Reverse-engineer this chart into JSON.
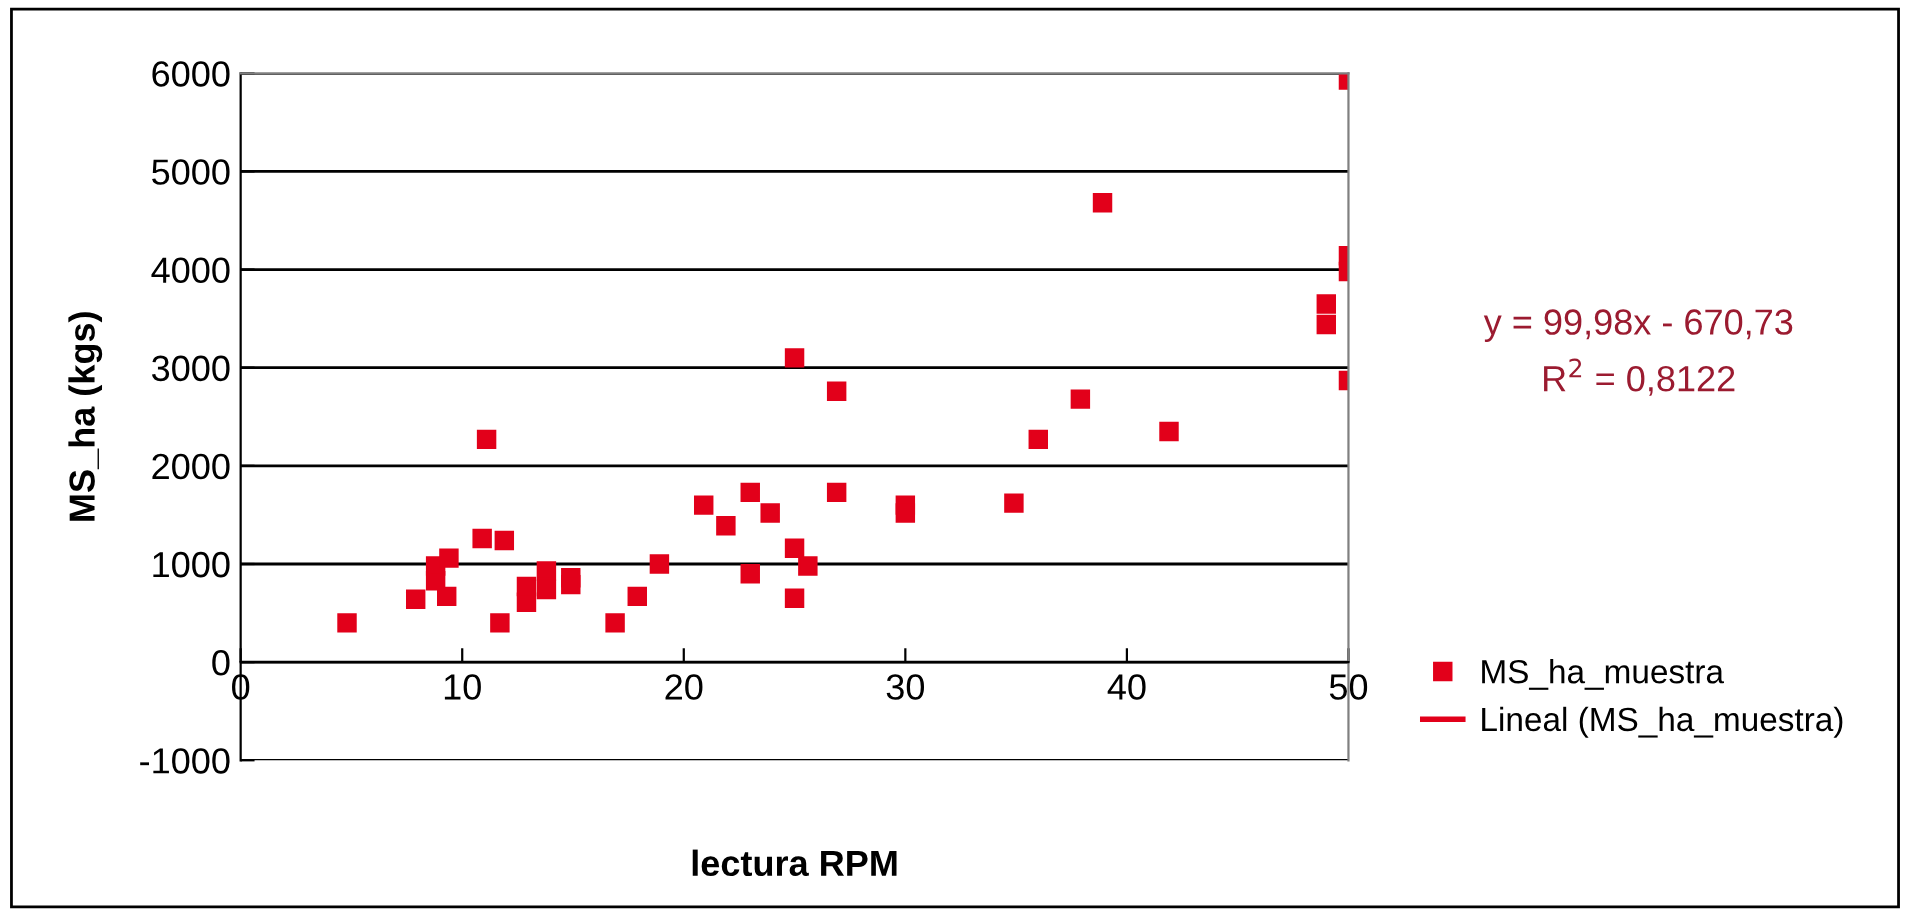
{
  "chart_data": {
    "type": "scatter",
    "xlabel": "lectura RPM",
    "ylabel": "MS_ha (kgs)",
    "xlim": [
      0,
      50
    ],
    "xticks": [
      0,
      10,
      20,
      30,
      40,
      50
    ],
    "ylim": [
      -1000,
      6000
    ],
    "yticks": [
      -1000,
      0,
      1000,
      2000,
      3000,
      4000,
      5000,
      6000
    ],
    "grid": "y",
    "legend": "right",
    "marker": "square",
    "annotations": [
      "y = 99,98x - 670,73",
      "R$^{2}$ = 0,8122"
    ],
    "series": [
      {
        "name": "MS_ha_muestra",
        "color": "#e2001a",
        "x": [
          4.8,
          7.9,
          8.8,
          8.8,
          9.4,
          9.3,
          10.9,
          11.9,
          11.7,
          12.9,
          12.9,
          13.8,
          13.8,
          14.9,
          14.9,
          16.9,
          11.1,
          17.9,
          18.9,
          20.9,
          21.9,
          23.0,
          23.0,
          23.9,
          25.0,
          25.0,
          25.0,
          25.6,
          26.9,
          26.9,
          30.0,
          30.0,
          50.0,
          38.9,
          50.0,
          50.0,
          49.0,
          49.0,
          50.0,
          37.9,
          41.9,
          36.0,
          34.9
        ],
        "values": [
          400,
          640,
          980,
          830,
          1060,
          670,
          1260,
          1240,
          400,
          770,
          610,
          930,
          740,
          860,
          790,
          400,
          2270,
          670,
          1000,
          1600,
          1390,
          1730,
          900,
          1520,
          3100,
          1160,
          650,
          980,
          2760,
          1730,
          1600,
          1520,
          5930,
          4680,
          4140,
          3980,
          3650,
          3440,
          2870,
          2680,
          2350,
          2270,
          1620
        ]
      },
      {
        "name": "Lineal (MS_ha_muestra)",
        "color": "#e2001a",
        "type": "line",
        "line_style": "solid"
      }
    ]
  }
}
